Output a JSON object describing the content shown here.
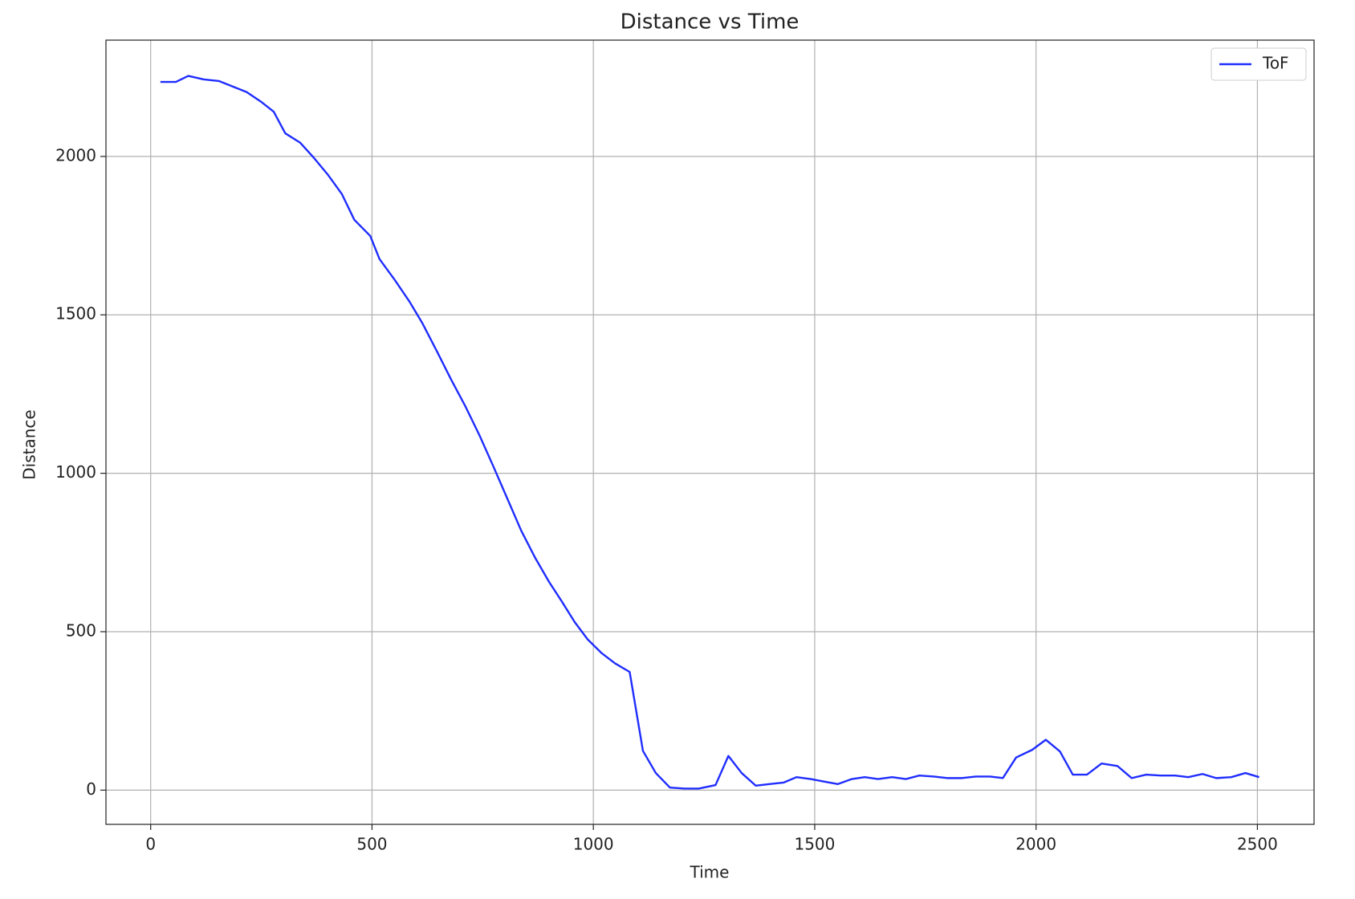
{
  "chart_data": {
    "type": "line",
    "title": "Distance vs Time",
    "x_label": "Time",
    "y_label": "Distance",
    "x": [
      22,
      57,
      85,
      120,
      154,
      217,
      249,
      278,
      304,
      338,
      369,
      401,
      432,
      460,
      496,
      517,
      551,
      585,
      614,
      648,
      679,
      711,
      743,
      774,
      806,
      837,
      869,
      900,
      928,
      958,
      987,
      1019,
      1049,
      1082,
      1112,
      1141,
      1173,
      1207,
      1238,
      1276,
      1305,
      1335,
      1367,
      1398,
      1430,
      1459,
      1491,
      1521,
      1552,
      1584,
      1613,
      1643,
      1675,
      1706,
      1736,
      1769,
      1799,
      1833,
      1864,
      1896,
      1925,
      1955,
      1991,
      2022,
      2054,
      2083,
      2115,
      2148,
      2184,
      2216,
      2249,
      2281,
      2314,
      2344,
      2376,
      2407,
      2441,
      2473,
      2504
    ],
    "series": [
      {
        "name": "ToF",
        "color": "#1f2dff",
        "values": [
          2235,
          2235,
          2254,
          2243,
          2238,
          2203,
          2173,
          2141,
          2073,
          2043,
          1995,
          1941,
          1881,
          1800,
          1749,
          1676,
          1611,
          1541,
          1473,
          1381,
          1295,
          1211,
          1119,
          1022,
          919,
          819,
          732,
          657,
          597,
          530,
          476,
          432,
          400,
          373,
          124,
          54,
          8,
          5,
          5,
          16,
          108,
          54,
          14,
          19,
          24,
          41,
          35,
          27,
          19,
          35,
          41,
          35,
          41,
          35,
          46,
          43,
          38,
          38,
          43,
          43,
          38,
          103,
          127,
          159,
          122,
          49,
          49,
          84,
          76,
          38,
          49,
          46,
          46,
          41,
          51,
          38,
          41,
          54,
          41
        ]
      }
    ],
    "xlim": [
      -101,
      2628
    ],
    "ylim": [
      -108,
      2367
    ],
    "xticks": [
      0,
      500,
      1000,
      1500,
      2000,
      2500
    ],
    "yticks": [
      0,
      500,
      1000,
      1500,
      2000
    ],
    "grid": true,
    "legend": "upper right"
  }
}
